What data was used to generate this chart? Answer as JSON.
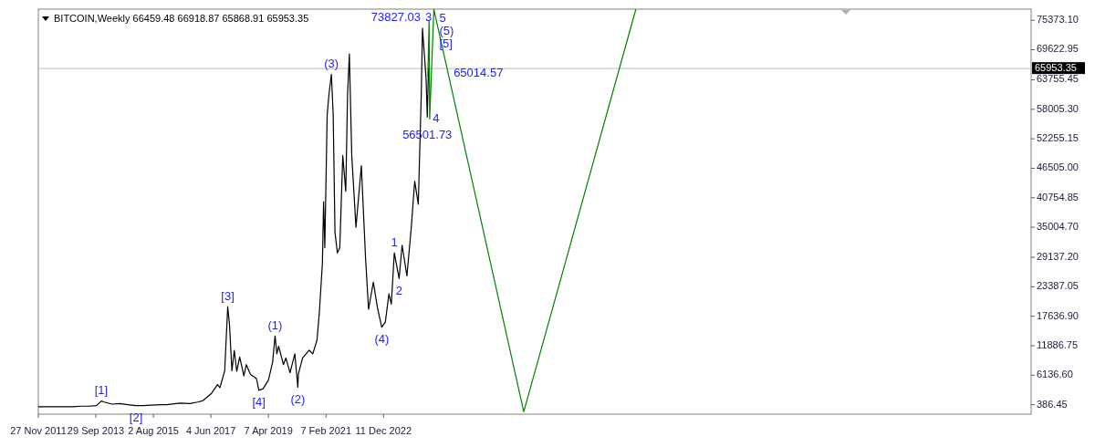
{
  "chart_data": {
    "type": "line",
    "title": "BITCOIN,Weekly  66459.48 66918.87 65868.91 65953.35",
    "grid": false,
    "marker": "none",
    "xlim": [
      "2011-11-27",
      "2043-08-27"
    ],
    "xticks": [
      {
        "value": "2011-11-27",
        "label": "27 Nov 2011"
      },
      {
        "value": "2013-09-29",
        "label": "29 Sep 2013"
      },
      {
        "value": "2015-08-02",
        "label": "2 Aug 2015"
      },
      {
        "value": "2017-06-04",
        "label": "4 Jun 2017"
      },
      {
        "value": "2019-04-07",
        "label": "7 Apr 2019"
      },
      {
        "value": "2021-02-07",
        "label": "7 Feb 2021"
      },
      {
        "value": "2022-12-11",
        "label": "11 Dec 2022"
      }
    ],
    "ylim": [
      -1460,
      77550
    ],
    "yticks": [
      {
        "value": 386.45,
        "label": "386.45"
      },
      {
        "value": 6136.6,
        "label": "6136.60"
      },
      {
        "value": 11886.75,
        "label": "11886.75"
      },
      {
        "value": 17636.9,
        "label": "17636.90"
      },
      {
        "value": 23387.05,
        "label": "23387.05"
      },
      {
        "value": 29137.2,
        "label": "29137.20"
      },
      {
        "value": 35004.7,
        "label": "35004.70"
      },
      {
        "value": 40754.85,
        "label": "40754.85"
      },
      {
        "value": 46505,
        "label": "46505.00"
      },
      {
        "value": 52255.15,
        "label": "52255.15"
      },
      {
        "value": 58005.3,
        "label": "58005.30"
      },
      {
        "value": 63755.45,
        "label": "63755.45"
      },
      {
        "value": 69622.95,
        "label": "69622.95"
      },
      {
        "value": 75373.1,
        "label": "75373.10"
      }
    ],
    "ref_lines": [
      {
        "axis": "y",
        "value": 65953.35,
        "label": "65953.35",
        "color": "#c8c8c8"
      }
    ],
    "series": [
      {
        "color": "#000000",
        "x": [
          "2011-11-27",
          "2012-03-04",
          "2012-08-12",
          "2013-01-06",
          "2013-04-07",
          "2013-07-07",
          "2013-10-06",
          "2013-12-01",
          "2014-01-05",
          "2014-04-06",
          "2014-07-06",
          "2014-10-05",
          "2015-01-11",
          "2015-04-05",
          "2015-07-05",
          "2015-11-01",
          "2016-01-03",
          "2016-06-12",
          "2016-10-02",
          "2017-01-01",
          "2017-03-05",
          "2017-06-11",
          "2017-08-20",
          "2017-09-17",
          "2017-11-12",
          "2017-12-17",
          "2018-01-07",
          "2018-02-04",
          "2018-03-04",
          "2018-04-01",
          "2018-05-06",
          "2018-06-24",
          "2018-07-22",
          "2018-09-09",
          "2018-11-18",
          "2018-12-16",
          "2019-02-03",
          "2019-04-07",
          "2019-05-26",
          "2019-06-23",
          "2019-07-14",
          "2019-08-04",
          "2019-09-29",
          "2019-10-27",
          "2019-12-15",
          "2020-02-09",
          "2020-03-15",
          "2020-03-22",
          "2020-05-10",
          "2020-07-26",
          "2020-09-06",
          "2020-10-25",
          "2020-11-22",
          "2020-12-27",
          "2021-01-10",
          "2021-01-24",
          "2021-02-21",
          "2021-03-14",
          "2021-04-11",
          "2021-05-02",
          "2021-05-23",
          "2021-06-20",
          "2021-07-18",
          "2021-08-22",
          "2021-09-26",
          "2021-10-17",
          "2021-11-07",
          "2021-12-05",
          "2022-01-23",
          "2022-03-27",
          "2022-05-15",
          "2022-06-19",
          "2022-08-14",
          "2022-10-02",
          "2022-11-20",
          "2023-01-01",
          "2023-02-12",
          "2023-03-12",
          "2023-04-16",
          "2023-06-11",
          "2023-07-16",
          "2023-09-10",
          "2023-10-29",
          "2023-12-10",
          "2024-01-21",
          "2024-02-25",
          "2024-03-10",
          "2024-04-21",
          "2024-05-05",
          "2024-05-19",
          "2024-06-02"
        ],
        "values": [
          0,
          0,
          0,
          0,
          100,
          100,
          200,
          1100,
          900,
          500,
          600,
          400,
          200,
          200,
          300,
          400,
          400,
          700,
          600,
          900,
          1200,
          2600,
          4300,
          3700,
          7000,
          19500,
          16000,
          7000,
          11000,
          6900,
          9700,
          6000,
          8200,
          6300,
          5500,
          3200,
          3500,
          5200,
          8700,
          13800,
          10300,
          11800,
          8200,
          9500,
          6600,
          10300,
          3800,
          6400,
          9500,
          11000,
          10300,
          13000,
          18500,
          28000,
          40000,
          31000,
          57000,
          61000,
          64800,
          57000,
          34000,
          30000,
          31000,
          49000,
          42000,
          61000,
          68800,
          49000,
          35000,
          47000,
          29000,
          19000,
          24300,
          19200,
          15500,
          16500,
          22000,
          20000,
          30000,
          25000,
          31500,
          25500,
          34500,
          44000,
          39500,
          61000,
          73827.03,
          64000,
          56501.73,
          66000,
          65953.35
        ]
      },
      {
        "color": "#008000",
        "x": [
          "2024-05-12",
          "2024-05-26",
          "2024-06-02",
          "2024-07-21",
          "2027-06-06",
          "2031-01-05"
        ],
        "values": [
          64500,
          75400,
          56100,
          77500,
          -1000,
          77500
        ]
      }
    ],
    "annotations": [
      {
        "text": "[1]",
        "x": "2013-12-01",
        "y": 1100
      },
      {
        "text": "[2]",
        "x": "2015-01-11",
        "y": 200
      },
      {
        "text": "[3]",
        "x": "2017-12-17",
        "y": 19500
      },
      {
        "text": "[4]",
        "x": "2018-12-16",
        "y": 3200
      },
      {
        "text": "(1)",
        "x": "2019-06-23",
        "y": 13800
      },
      {
        "text": "(2)",
        "x": "2020-03-15",
        "y": 3800
      },
      {
        "text": "(3)",
        "x": "2021-04-11",
        "y": 64800
      },
      {
        "text": "(4)",
        "x": "2022-11-20",
        "y": 15500
      },
      {
        "text": "1",
        "x": "2023-04-16",
        "y": 30000
      },
      {
        "text": "2",
        "x": "2023-06-11",
        "y": 25000
      },
      {
        "text": "73827.03",
        "x": "2024-03-10",
        "y": 73827.03
      },
      {
        "text": "3",
        "x": "2024-03-10",
        "y": 73827.03
      },
      {
        "text": "4",
        "x": "2024-05-05",
        "y": 56501.73
      },
      {
        "text": "56501.73",
        "x": "2024-05-05",
        "y": 56501.73
      },
      {
        "text": "5",
        "x": "2024-07-21",
        "y": 77500
      },
      {
        "text": "(5)",
        "x": "2024-07-21",
        "y": 77500
      },
      {
        "text": "[5]",
        "x": "2024-07-21",
        "y": 77500
      },
      {
        "text": "65014.57",
        "x": "2025-01-04",
        "y": 65014.57
      }
    ]
  }
}
